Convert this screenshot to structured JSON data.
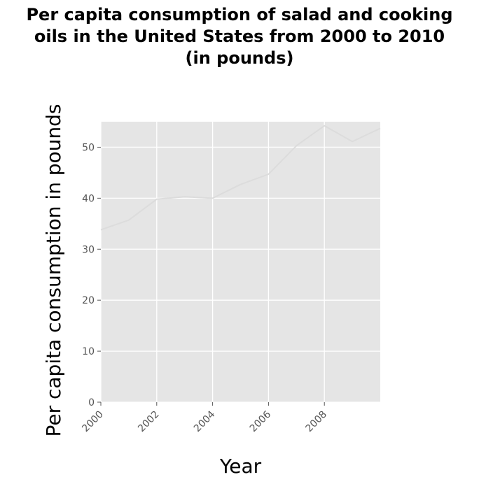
{
  "chart_data": {
    "type": "line",
    "title_lines": [
      "Per capita consumption of salad and cooking",
      "oils in the United States from 2000 to 2010",
      "(in pounds)"
    ],
    "xlabel": "Year",
    "ylabel": "Per capita consumption in pounds",
    "x_ticks": [
      2000,
      2002,
      2004,
      2006,
      2008
    ],
    "y_ticks": [
      0,
      10,
      20,
      30,
      40,
      50
    ],
    "xlim": [
      2000,
      2010
    ],
    "ylim": [
      0,
      55
    ],
    "grid": true,
    "colors": {
      "plot_background": "#e5e5e5",
      "grid": "#ffffff",
      "line": "#dcdcdc",
      "tick": "#555555"
    },
    "series": [
      {
        "x": [
          2000,
          2001,
          2002,
          2003,
          2004,
          2005,
          2006,
          2007,
          2008,
          2009,
          2010
        ],
        "values": [
          33.8,
          35.7,
          39.8,
          40.3,
          40.0,
          42.7,
          44.7,
          50.3,
          54.2,
          51.1,
          53.7
        ]
      }
    ]
  }
}
